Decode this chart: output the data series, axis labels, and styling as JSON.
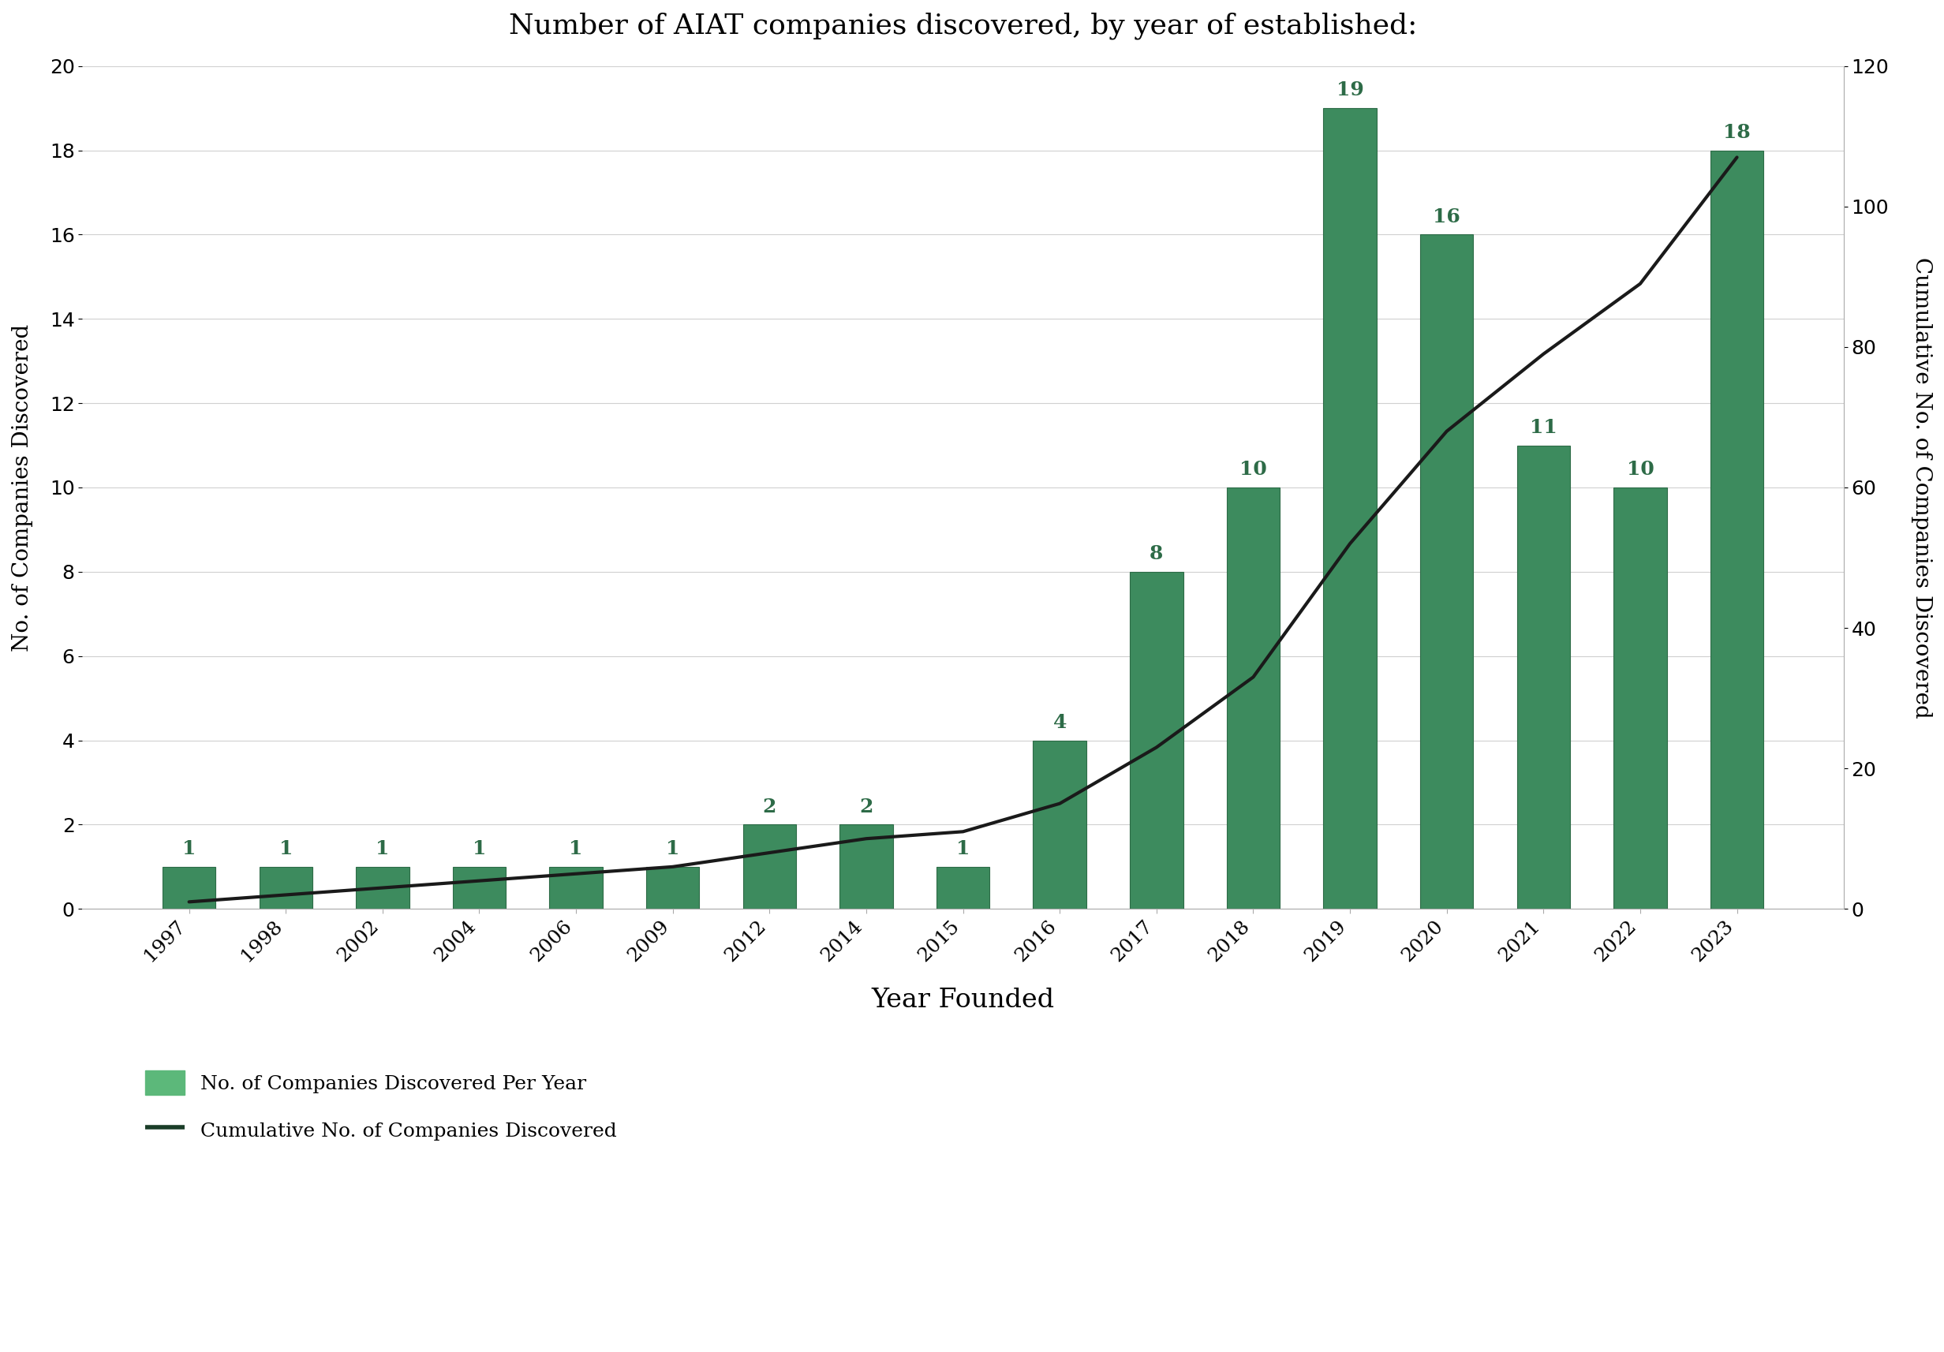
{
  "years": [
    "1997",
    "1998",
    "2002",
    "2004",
    "2006",
    "2009",
    "2012",
    "2014",
    "2015",
    "2016",
    "2017",
    "2018",
    "2019",
    "2020",
    "2021",
    "2022",
    "2023"
  ],
  "values": [
    1,
    1,
    1,
    1,
    1,
    1,
    2,
    2,
    1,
    4,
    8,
    10,
    19,
    16,
    11,
    10,
    18
  ],
  "cumulative": [
    1,
    2,
    3,
    4,
    5,
    6,
    8,
    10,
    11,
    15,
    23,
    33,
    52,
    68,
    79,
    89,
    107
  ],
  "bar_color": "#3d8b5e",
  "bar_edge_color": "#2d6b47",
  "legend_bar_color": "#5cb87a",
  "legend_line_color": "#1a3d28",
  "line_color": "#1a1a1a",
  "label_color": "#2d6b47",
  "title": "Number of AIAT companies discovered, by year of established:",
  "xlabel": "Year Founded",
  "ylabel_left": "No. of Companies Discovered",
  "ylabel_right": "Cumulative No. of Companies Discovered",
  "ylim_left": [
    0,
    20
  ],
  "ylim_right": [
    0,
    120
  ],
  "yticks_left": [
    0,
    2,
    4,
    6,
    8,
    10,
    12,
    14,
    16,
    18,
    20
  ],
  "yticks_right": [
    0,
    20,
    40,
    60,
    80,
    100,
    120
  ],
  "legend_bar_label": "No. of Companies Discovered Per Year",
  "legend_line_label": "Cumulative No. of Companies Discovered",
  "background_color": "#ffffff",
  "grid_color": "#d0d0d0",
  "title_fontsize": 26,
  "axis_label_fontsize": 20,
  "tick_fontsize": 18,
  "bar_label_fontsize": 18,
  "legend_fontsize": 18
}
